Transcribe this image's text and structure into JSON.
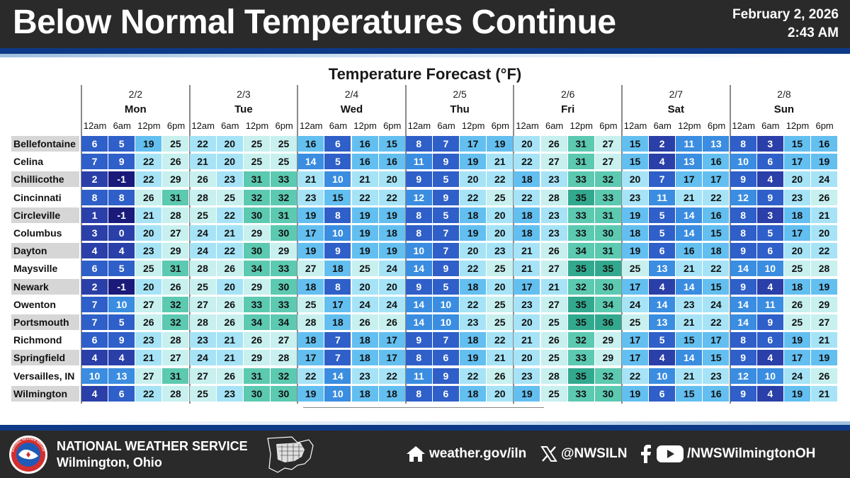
{
  "header": {
    "title": "Below Normal Temperatures Continue",
    "date": "February 2, 2026",
    "time": "2:43 AM"
  },
  "forecast_title": "Temperature Forecast (°F)",
  "days": [
    {
      "date": "2/2",
      "name": "Mon"
    },
    {
      "date": "2/3",
      "name": "Tue"
    },
    {
      "date": "2/4",
      "name": "Wed"
    },
    {
      "date": "2/5",
      "name": "Thu"
    },
    {
      "date": "2/6",
      "name": "Fri"
    },
    {
      "date": "2/7",
      "name": "Sat"
    },
    {
      "date": "2/8",
      "name": "Sun"
    }
  ],
  "times": [
    "12am",
    "6am",
    "12pm",
    "6pm"
  ],
  "rows": [
    {
      "city": "Bellefontaine",
      "temps": [
        6,
        5,
        19,
        25,
        22,
        20,
        25,
        25,
        16,
        6,
        16,
        15,
        8,
        7,
        17,
        19,
        20,
        26,
        31,
        27,
        15,
        2,
        11,
        13,
        8,
        3,
        15,
        16
      ]
    },
    {
      "city": "Celina",
      "temps": [
        7,
        9,
        22,
        26,
        21,
        20,
        25,
        25,
        14,
        5,
        16,
        16,
        11,
        9,
        19,
        21,
        22,
        27,
        31,
        27,
        15,
        4,
        13,
        16,
        10,
        6,
        17,
        19
      ]
    },
    {
      "city": "Chillicothe",
      "temps": [
        2,
        -1,
        22,
        29,
        26,
        23,
        31,
        33,
        21,
        10,
        21,
        20,
        9,
        5,
        20,
        22,
        18,
        23,
        33,
        32,
        20,
        7,
        17,
        17,
        9,
        4,
        20,
        24
      ]
    },
    {
      "city": "Cincinnati",
      "temps": [
        8,
        8,
        26,
        31,
        28,
        25,
        32,
        32,
        23,
        15,
        22,
        22,
        12,
        9,
        22,
        25,
        22,
        28,
        35,
        33,
        23,
        11,
        21,
        22,
        12,
        9,
        23,
        26
      ]
    },
    {
      "city": "Circleville",
      "temps": [
        1,
        -1,
        21,
        28,
        25,
        22,
        30,
        31,
        19,
        8,
        19,
        19,
        8,
        5,
        18,
        20,
        18,
        23,
        33,
        31,
        19,
        5,
        14,
        16,
        8,
        3,
        18,
        21
      ]
    },
    {
      "city": "Columbus",
      "temps": [
        3,
        0,
        20,
        27,
        24,
        21,
        29,
        30,
        17,
        10,
        19,
        18,
        8,
        7,
        19,
        20,
        18,
        23,
        33,
        30,
        18,
        5,
        14,
        15,
        8,
        5,
        17,
        20
      ]
    },
    {
      "city": "Dayton",
      "temps": [
        4,
        4,
        23,
        29,
        24,
        22,
        30,
        29,
        19,
        9,
        19,
        19,
        10,
        7,
        20,
        23,
        21,
        26,
        34,
        31,
        19,
        6,
        16,
        18,
        9,
        6,
        20,
        22
      ]
    },
    {
      "city": "Maysville",
      "temps": [
        6,
        5,
        25,
        31,
        28,
        26,
        34,
        33,
        27,
        18,
        25,
        24,
        14,
        9,
        22,
        25,
        21,
        27,
        35,
        35,
        25,
        13,
        21,
        22,
        14,
        10,
        25,
        28
      ]
    },
    {
      "city": "Newark",
      "temps": [
        2,
        -1,
        20,
        26,
        25,
        20,
        29,
        30,
        18,
        8,
        20,
        20,
        9,
        5,
        18,
        20,
        17,
        21,
        32,
        30,
        17,
        4,
        14,
        15,
        9,
        4,
        18,
        19
      ]
    },
    {
      "city": "Owenton",
      "temps": [
        7,
        10,
        27,
        32,
        27,
        26,
        33,
        33,
        25,
        17,
        24,
        24,
        14,
        10,
        22,
        25,
        23,
        27,
        35,
        34,
        24,
        14,
        23,
        24,
        14,
        11,
        26,
        29
      ]
    },
    {
      "city": "Portsmouth",
      "temps": [
        7,
        5,
        26,
        32,
        28,
        26,
        34,
        34,
        28,
        18,
        26,
        26,
        14,
        10,
        23,
        25,
        20,
        25,
        35,
        36,
        25,
        13,
        21,
        22,
        14,
        9,
        25,
        27
      ]
    },
    {
      "city": "Richmond",
      "temps": [
        6,
        9,
        23,
        28,
        23,
        21,
        26,
        27,
        18,
        7,
        18,
        17,
        9,
        7,
        18,
        22,
        21,
        26,
        32,
        29,
        17,
        5,
        15,
        17,
        8,
        6,
        19,
        21
      ]
    },
    {
      "city": "Springfield",
      "temps": [
        4,
        4,
        21,
        27,
        24,
        21,
        29,
        28,
        17,
        7,
        18,
        17,
        8,
        6,
        19,
        21,
        20,
        25,
        33,
        29,
        17,
        4,
        14,
        15,
        9,
        4,
        17,
        19
      ]
    },
    {
      "city": "Versailles, IN",
      "temps": [
        10,
        13,
        27,
        31,
        27,
        26,
        31,
        32,
        22,
        14,
        23,
        22,
        11,
        9,
        22,
        26,
        23,
        28,
        35,
        32,
        22,
        10,
        21,
        23,
        12,
        10,
        24,
        26
      ]
    },
    {
      "city": "Wilmington",
      "temps": [
        4,
        6,
        22,
        28,
        25,
        23,
        30,
        30,
        19,
        10,
        18,
        18,
        8,
        6,
        18,
        20,
        19,
        25,
        33,
        30,
        19,
        6,
        15,
        16,
        9,
        4,
        19,
        21
      ]
    }
  ],
  "colors": {
    "below_0": "#1a1a7a",
    "t0_4": "#2a3fa8",
    "t5_9": "#2f5fc8",
    "t10_14": "#3a8de0",
    "t15_19": "#63bff0",
    "t20_24": "#a6e3f6",
    "t25_29": "#c7f0ef",
    "t30_34": "#5cc9b1",
    "t35_up": "#32a98e",
    "header_bg": "#2a2a2a",
    "accent_blue": "#0d3a87"
  },
  "footer": {
    "org": "NATIONAL WEATHER SERVICE",
    "location": "Wilmington, Ohio",
    "logo_text": "NATIONAL WEATHER SERVICE",
    "website": "weather.gov/iln",
    "x_handle": "@NWSILN",
    "facebook_youtube": "/NWSWilmingtonOH"
  }
}
